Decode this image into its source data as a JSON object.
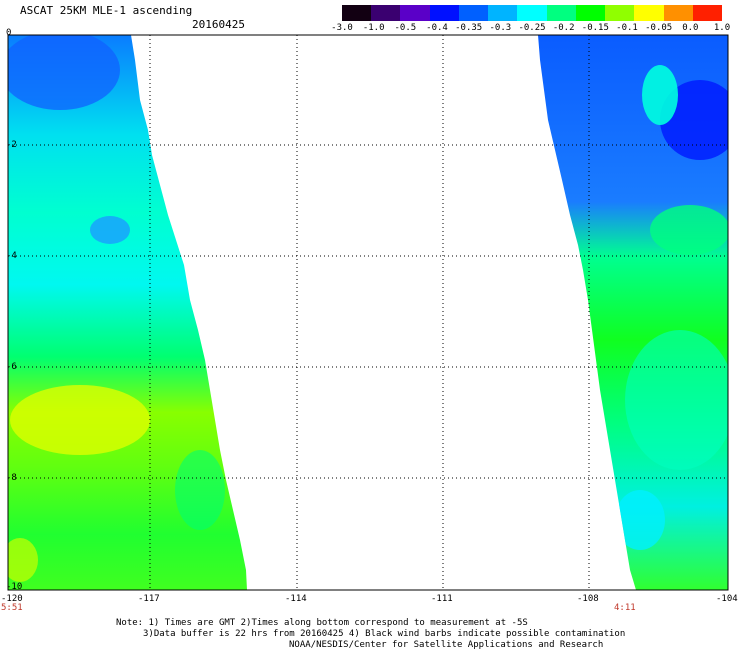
{
  "header": {
    "title": "ASCAT 25KM MLE-1 ascending",
    "date": "20160425"
  },
  "colorbar": {
    "labels": [
      "-3.0",
      "-1.0",
      "-0.5",
      "-0.4",
      "-0.35",
      "-0.3",
      "-0.25",
      "-0.2",
      "-0.15",
      "-0.1",
      "-0.05",
      "0.0",
      "1.0"
    ],
    "colors": [
      "#120012",
      "#3a0070",
      "#5a00c8",
      "#0010ff",
      "#0060ff",
      "#00b4ff",
      "#00ffff",
      "#00ff80",
      "#00ff00",
      "#90ff00",
      "#ffff00",
      "#ff9000",
      "#ff2000"
    ]
  },
  "axes": {
    "x_ticks": [
      "-120",
      "-117",
      "-114",
      "-111",
      "-108",
      "-104"
    ],
    "y_ticks": [
      "0",
      "-2",
      "-4",
      "-6",
      "-8",
      "-10"
    ],
    "time_left": "5:51",
    "time_right": "4:11"
  },
  "notes": {
    "line1": "Note: 1) Times are GMT 2)Times along bottom correspond to measurement at -5S",
    "line2": "3)Data buffer is 22 hrs from 20160425 4) Black wind barbs indicate possible contamination",
    "line3": "NOAA/NESDIS/Center for Satellite Applications and Research"
  }
}
